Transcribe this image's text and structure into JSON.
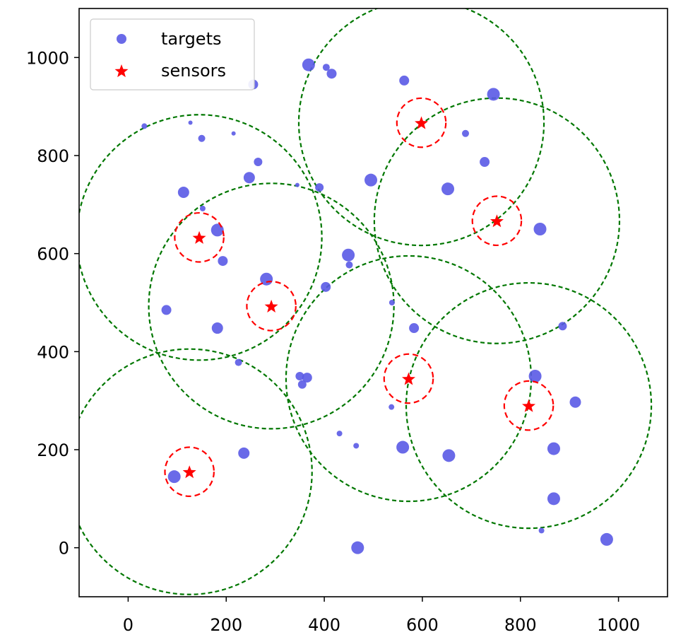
{
  "chart_data": {
    "type": "scatter",
    "title": "",
    "xlabel": "",
    "ylabel": "",
    "xlim": [
      -100,
      1100
    ],
    "ylim": [
      -100,
      1100
    ],
    "xticks": [
      0,
      200,
      400,
      600,
      800,
      1000
    ],
    "yticks": [
      0,
      200,
      400,
      600,
      800,
      1000
    ],
    "grid": false,
    "legend": {
      "placement": "top-left",
      "entries": [
        {
          "label": "targets",
          "marker": "circle",
          "color": "#5a5ae6"
        },
        {
          "label": "sensors",
          "marker": "star",
          "color": "#ff0000"
        }
      ]
    },
    "colors": {
      "targets": "#5a5ae6",
      "sensors": "#ff0000",
      "sensor_range": "#ff0000",
      "coverage_range": "#007700"
    },
    "series": [
      {
        "name": "targets",
        "marker": "circle",
        "points": [
          {
            "x": 33,
            "y": 860,
            "s": 4
          },
          {
            "x": 127,
            "y": 867,
            "s": 3
          },
          {
            "x": 150,
            "y": 835,
            "s": 5
          },
          {
            "x": 215,
            "y": 845,
            "s": 3
          },
          {
            "x": 255,
            "y": 945,
            "s": 7
          },
          {
            "x": 368,
            "y": 985,
            "s": 9
          },
          {
            "x": 404,
            "y": 980,
            "s": 5
          },
          {
            "x": 415,
            "y": 967,
            "s": 7
          },
          {
            "x": 563,
            "y": 953,
            "s": 7
          },
          {
            "x": 745,
            "y": 925,
            "s": 9
          },
          {
            "x": 688,
            "y": 845,
            "s": 5
          },
          {
            "x": 727,
            "y": 787,
            "s": 7
          },
          {
            "x": 265,
            "y": 787,
            "s": 6
          },
          {
            "x": 247,
            "y": 755,
            "s": 8
          },
          {
            "x": 113,
            "y": 725,
            "s": 8
          },
          {
            "x": 345,
            "y": 740,
            "s": 3
          },
          {
            "x": 390,
            "y": 735,
            "s": 6
          },
          {
            "x": 495,
            "y": 750,
            "s": 9
          },
          {
            "x": 652,
            "y": 732,
            "s": 9
          },
          {
            "x": 152,
            "y": 692,
            "s": 4
          },
          {
            "x": 182,
            "y": 648,
            "s": 9
          },
          {
            "x": 840,
            "y": 650,
            "s": 9
          },
          {
            "x": 449,
            "y": 597,
            "s": 9
          },
          {
            "x": 193,
            "y": 585,
            "s": 7
          },
          {
            "x": 451,
            "y": 577,
            "s": 5
          },
          {
            "x": 282,
            "y": 548,
            "s": 9
          },
          {
            "x": 403,
            "y": 532,
            "s": 7
          },
          {
            "x": 538,
            "y": 500,
            "s": 4
          },
          {
            "x": 78,
            "y": 485,
            "s": 7
          },
          {
            "x": 182,
            "y": 448,
            "s": 8
          },
          {
            "x": 583,
            "y": 448,
            "s": 7
          },
          {
            "x": 886,
            "y": 452,
            "s": 6
          },
          {
            "x": 225,
            "y": 378,
            "s": 5
          },
          {
            "x": 350,
            "y": 350,
            "s": 6
          },
          {
            "x": 365,
            "y": 347,
            "s": 7
          },
          {
            "x": 355,
            "y": 333,
            "s": 6
          },
          {
            "x": 830,
            "y": 350,
            "s": 9
          },
          {
            "x": 912,
            "y": 297,
            "s": 8
          },
          {
            "x": 537,
            "y": 287,
            "s": 4
          },
          {
            "x": 431,
            "y": 233,
            "s": 4
          },
          {
            "x": 465,
            "y": 208,
            "s": 4
          },
          {
            "x": 560,
            "y": 205,
            "s": 9
          },
          {
            "x": 654,
            "y": 188,
            "s": 9
          },
          {
            "x": 868,
            "y": 202,
            "s": 9
          },
          {
            "x": 236,
            "y": 193,
            "s": 8
          },
          {
            "x": 94,
            "y": 145,
            "s": 9
          },
          {
            "x": 868,
            "y": 100,
            "s": 9
          },
          {
            "x": 843,
            "y": 35,
            "s": 4
          },
          {
            "x": 468,
            "y": 0,
            "s": 9
          },
          {
            "x": 976,
            "y": 17,
            "s": 9
          }
        ]
      },
      {
        "name": "sensors",
        "marker": "star",
        "points": [
          {
            "x": 598,
            "y": 867,
            "sensor_radius": 50,
            "coverage_radius": 250
          },
          {
            "x": 752,
            "y": 667,
            "sensor_radius": 50,
            "coverage_radius": 250
          },
          {
            "x": 145,
            "y": 633,
            "sensor_radius": 50,
            "coverage_radius": 250
          },
          {
            "x": 292,
            "y": 493,
            "sensor_radius": 50,
            "coverage_radius": 250
          },
          {
            "x": 572,
            "y": 345,
            "sensor_radius": 50,
            "coverage_radius": 250
          },
          {
            "x": 817,
            "y": 290,
            "sensor_radius": 50,
            "coverage_radius": 250
          },
          {
            "x": 125,
            "y": 155,
            "sensor_radius": 50,
            "coverage_radius": 250
          }
        ]
      }
    ]
  }
}
